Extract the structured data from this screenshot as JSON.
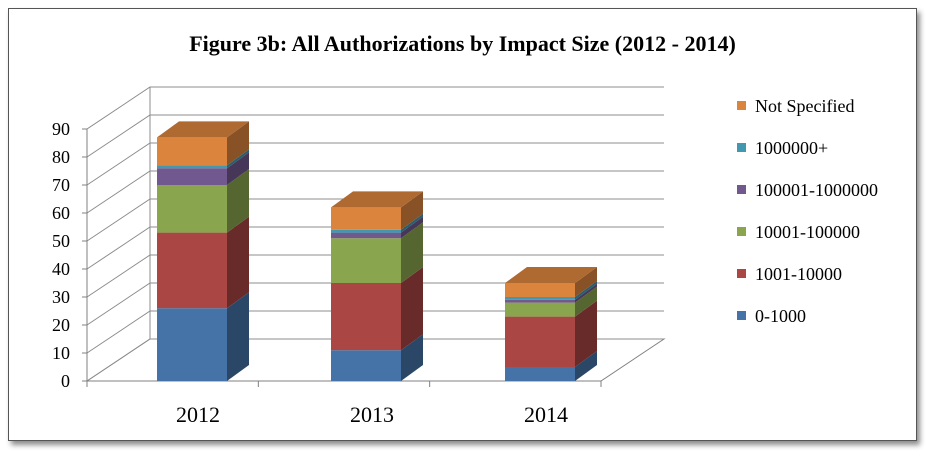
{
  "chart_data": {
    "type": "bar",
    "stacked": true,
    "three_d": true,
    "title": "Figure 3b: All Authorizations by Impact Size (2012 - 2014)",
    "xlabel": "",
    "ylabel": "",
    "categories": [
      "2012",
      "2013",
      "2014"
    ],
    "ylim": [
      0,
      90
    ],
    "yticks": [
      "0",
      "10",
      "20",
      "30",
      "40",
      "50",
      "60",
      "70",
      "80",
      "90"
    ],
    "grid": true,
    "legend_position": "right",
    "series": [
      {
        "name": "0-1000",
        "color": "#4572A7",
        "values": [
          26,
          11,
          5
        ]
      },
      {
        "name": "1001-10000",
        "color": "#AA4643",
        "values": [
          27,
          24,
          18
        ]
      },
      {
        "name": "10001-100000",
        "color": "#89A54E",
        "values": [
          17,
          16,
          5
        ]
      },
      {
        "name": "100001-1000000",
        "color": "#71588F",
        "values": [
          6,
          2,
          1
        ]
      },
      {
        "name": "1000000+",
        "color": "#4198AF",
        "values": [
          1,
          1,
          1
        ]
      },
      {
        "name": "Not Specified",
        "color": "#DB843D",
        "values": [
          10,
          8,
          5
        ]
      }
    ]
  }
}
